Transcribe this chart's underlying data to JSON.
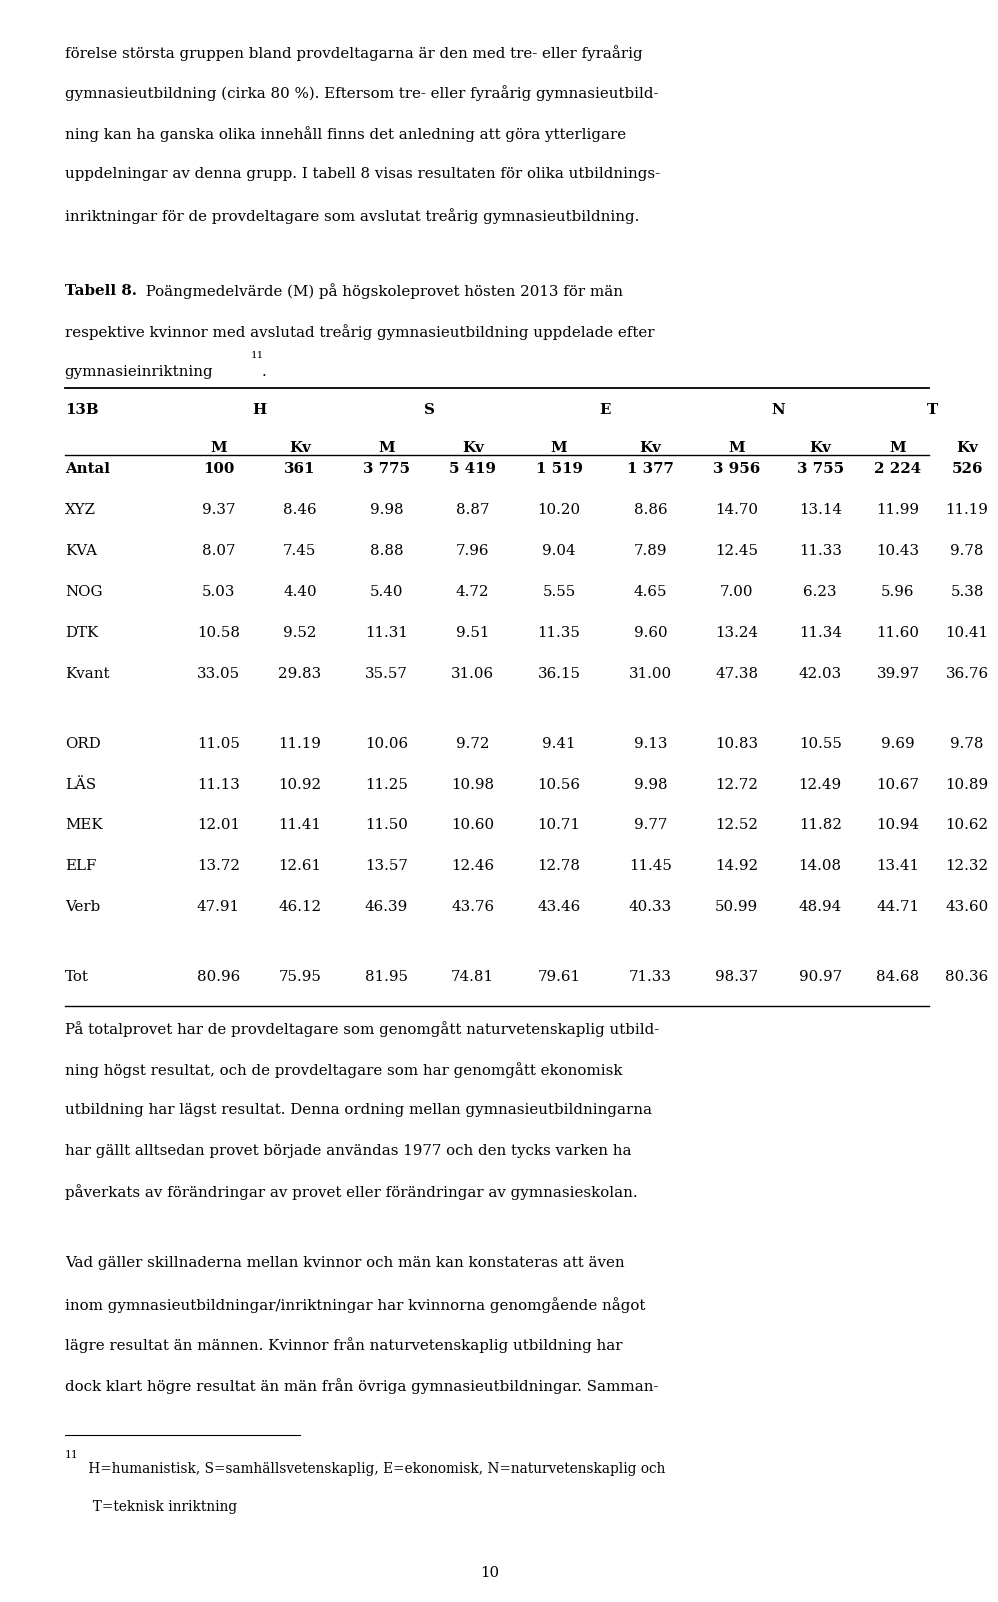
{
  "intro_lines": [
    "förelse största gruppen bland provdeltagarna är den med tre- eller fyraårig",
    "gymnasieutbildning (cirka 80 %). Eftersom tre- eller fyraårig gymnasieutbild-",
    "ning kan ha ganska olika innehåll finns det anledning att göra ytterligare",
    "uppdelningar av denna grupp. I tabell 8 visas resultaten för olika utbildnings-",
    "inriktningar för de provdeltagare som avslutat treårig gymnasieutbildning."
  ],
  "tabell_bold": "Tabell 8.",
  "tabell_line1_rest": " Poängmedelvärde (M) på högskoleprovet hösten 2013 för män",
  "tabell_line2": "respektive kvinnor med avslutad treårig gymnasieutbildning uppdelade efter",
  "tabell_line3_main": "gymnasieinriktning",
  "tabell_superscript": "11",
  "tabell_end": ".",
  "col_headers_top": [
    "13B",
    "H",
    "S",
    "E",
    "N",
    "T"
  ],
  "col_headers_sub": [
    "M",
    "Kv",
    "M",
    "Kv",
    "M",
    "Kv",
    "M",
    "Kv",
    "M",
    "Kv"
  ],
  "rows": [
    {
      "label": "Antal",
      "bold": true,
      "values": [
        "100",
        "361",
        "3 775",
        "5 419",
        "1 519",
        "1 377",
        "3 956",
        "3 755",
        "2 224",
        "526"
      ]
    },
    {
      "label": "XYZ",
      "bold": false,
      "values": [
        "9.37",
        "8.46",
        "9.98",
        "8.87",
        "10.20",
        "8.86",
        "14.70",
        "13.14",
        "11.99",
        "11.19"
      ]
    },
    {
      "label": "KVA",
      "bold": false,
      "values": [
        "8.07",
        "7.45",
        "8.88",
        "7.96",
        "9.04",
        "7.89",
        "12.45",
        "11.33",
        "10.43",
        "9.78"
      ]
    },
    {
      "label": "NOG",
      "bold": false,
      "values": [
        "5.03",
        "4.40",
        "5.40",
        "4.72",
        "5.55",
        "4.65",
        "7.00",
        "6.23",
        "5.96",
        "5.38"
      ]
    },
    {
      "label": "DTK",
      "bold": false,
      "values": [
        "10.58",
        "9.52",
        "11.31",
        "9.51",
        "11.35",
        "9.60",
        "13.24",
        "11.34",
        "11.60",
        "10.41"
      ]
    },
    {
      "label": "Kvant",
      "bold": false,
      "values": [
        "33.05",
        "29.83",
        "35.57",
        "31.06",
        "36.15",
        "31.00",
        "47.38",
        "42.03",
        "39.97",
        "36.76"
      ]
    },
    {
      "label": "ORD",
      "bold": false,
      "values": [
        "11.05",
        "11.19",
        "10.06",
        "9.72",
        "9.41",
        "9.13",
        "10.83",
        "10.55",
        "9.69",
        "9.78"
      ]
    },
    {
      "label": "LÄS",
      "bold": false,
      "values": [
        "11.13",
        "10.92",
        "11.25",
        "10.98",
        "10.56",
        "9.98",
        "12.72",
        "12.49",
        "10.67",
        "10.89"
      ]
    },
    {
      "label": "MEK",
      "bold": false,
      "values": [
        "12.01",
        "11.41",
        "11.50",
        "10.60",
        "10.71",
        "9.77",
        "12.52",
        "11.82",
        "10.94",
        "10.62"
      ]
    },
    {
      "label": "ELF",
      "bold": false,
      "values": [
        "13.72",
        "12.61",
        "13.57",
        "12.46",
        "12.78",
        "11.45",
        "14.92",
        "14.08",
        "13.41",
        "12.32"
      ]
    },
    {
      "label": "Verb",
      "bold": false,
      "values": [
        "47.91",
        "46.12",
        "46.39",
        "43.76",
        "43.46",
        "40.33",
        "50.99",
        "48.94",
        "44.71",
        "43.60"
      ]
    },
    {
      "label": "Tot",
      "bold": false,
      "values": [
        "80.96",
        "75.95",
        "81.95",
        "74.81",
        "79.61",
        "71.33",
        "98.37",
        "90.97",
        "84.68",
        "80.36"
      ]
    }
  ],
  "blank_after_rows": [
    5,
    10
  ],
  "para1_lines": [
    "På totalprovet har de provdeltagare som genomgått naturvetenskaplig utbild-",
    "ning högst resultat, och de provdeltagare som har genomgått ekonomisk",
    "utbildning har lägst resultat. Denna ordning mellan gymnasieutbildningarna",
    "har gällt alltsedan provet började användas 1977 och den tycks varken ha",
    "påverkats av förändringar av provet eller förändringar av gymnasieskolan."
  ],
  "para2_lines": [
    "Vad gäller skillnaderna mellan kvinnor och män kan konstateras att även",
    "inom gymnasieutbildningar/inriktningar har kvinnorna genomgående något",
    "lägre resultat än männen. Kvinnor från naturvetenskaplig utbildning har",
    "dock klart högre resultat än män från övriga gymnasieutbildningar. Samman-"
  ],
  "footnote_num": "11",
  "footnote_line1": " H=humanistisk, S=samhällsvetenskaplig, E=ekonomisk, N=naturvetenskaplig och",
  "footnote_line2": "  T=teknisk inriktning",
  "page_number": "10",
  "ml": 0.057,
  "mr": 0.957,
  "fs": 10.8,
  "lh": 0.0258,
  "serif": "DejaVu Serif"
}
